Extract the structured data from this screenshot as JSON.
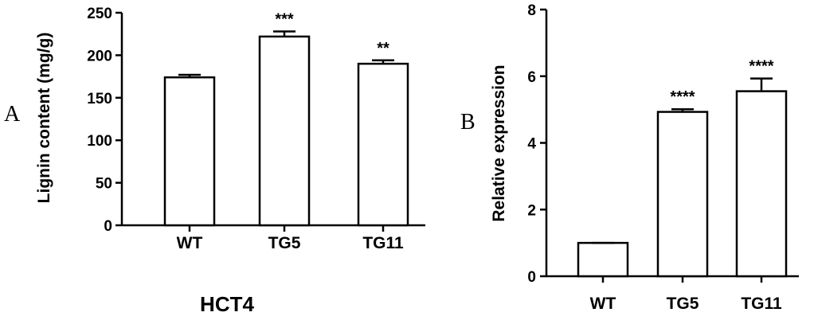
{
  "chart_data": [
    {
      "type": "bar",
      "panel_label": "A",
      "subtitle": "HCT4",
      "ylabel": "Lignin content (mg/g)",
      "xlabel": "",
      "ylim": [
        0,
        250
      ],
      "yticks": [
        "0",
        "50",
        "100",
        "150",
        "200",
        "250"
      ],
      "categories": [
        "WT",
        "TG5",
        "TG11"
      ],
      "values": [
        174,
        222,
        190
      ],
      "errors": [
        3,
        6,
        4
      ],
      "significance": [
        "",
        "***",
        "**"
      ],
      "grid": false
    },
    {
      "type": "bar",
      "panel_label": "B",
      "ylabel": "Relative expression",
      "xlabel": "",
      "ylim": [
        0,
        8
      ],
      "yticks": [
        "0",
        "2",
        "4",
        "6",
        "8"
      ],
      "categories": [
        "WT",
        "TG5",
        "TG11"
      ],
      "values": [
        1.0,
        4.93,
        5.55
      ],
      "errors": [
        0,
        0.08,
        0.38
      ],
      "significance": [
        "",
        "****",
        "****"
      ],
      "grid": false
    }
  ]
}
